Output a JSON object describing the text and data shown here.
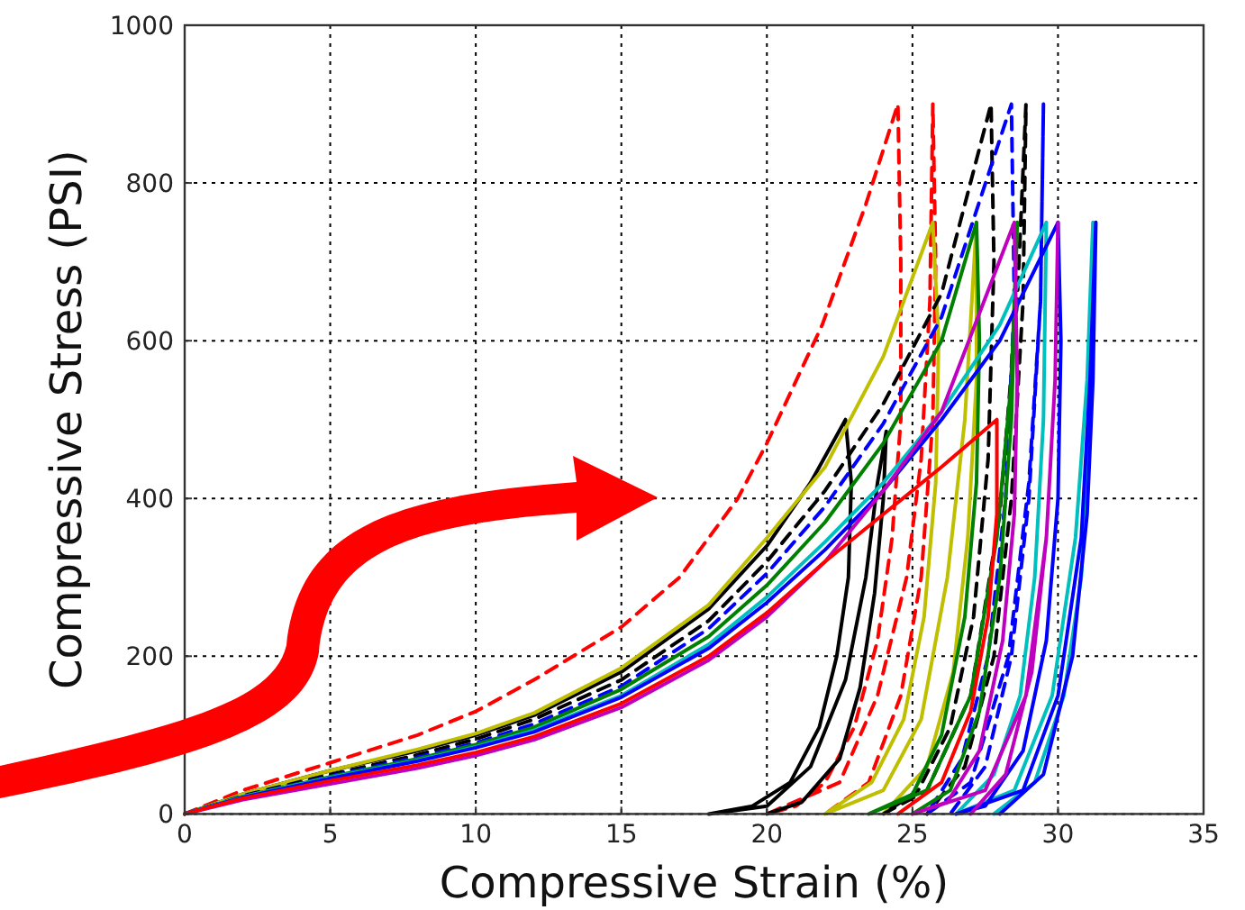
{
  "chart_data": {
    "type": "line",
    "xlabel": "Compressive Strain (%)",
    "ylabel": "Compressive Stress (PSI)",
    "xlim": [
      0,
      35
    ],
    "ylim": [
      0,
      1000
    ],
    "xticks": [
      0,
      5,
      10,
      15,
      20,
      25,
      30,
      35
    ],
    "yticks": [
      0,
      200,
      400,
      600,
      800,
      1000
    ],
    "grid": true,
    "marker": "none",
    "series": [
      {
        "color": "#ff0000",
        "line_style": "dashed",
        "x": [
          0,
          2,
          5,
          8,
          10,
          12,
          15,
          17,
          19,
          20,
          21.9,
          23.4,
          24.5,
          24.6,
          24.6,
          24.3,
          23.8,
          23,
          22,
          21,
          20,
          22.5,
          23.8,
          24.8,
          25.3,
          25.6,
          25.7,
          25.8,
          25.7,
          25.3,
          24.6,
          23.5,
          22
        ],
        "values": [
          0,
          30,
          65,
          100,
          130,
          170,
          237,
          300,
          400,
          470,
          620,
          773,
          900,
          700,
          500,
          350,
          220,
          110,
          40,
          10,
          0,
          40,
          150,
          300,
          450,
          650,
          900,
          700,
          500,
          300,
          150,
          40,
          0
        ]
      },
      {
        "color": "#000000",
        "line_style": "solid",
        "x": [
          0,
          2,
          5,
          8,
          10,
          12,
          15,
          18,
          20,
          21.5,
          22.7,
          22.9,
          22.8,
          22.4,
          21.8,
          20.8,
          19.5,
          18,
          20,
          21.5,
          22.7,
          23.4,
          23.8,
          24.1,
          24,
          23.7,
          23.2,
          22.5,
          21.2,
          20
        ],
        "values": [
          0,
          25,
          55,
          80,
          100,
          125,
          180,
          260,
          340,
          420,
          500,
          420,
          300,
          200,
          110,
          40,
          10,
          0,
          10,
          60,
          170,
          300,
          420,
          485,
          400,
          280,
          160,
          70,
          15,
          0
        ]
      },
      {
        "color": "#bfbf00",
        "line_style": "solid",
        "x": [
          0,
          2,
          5,
          8,
          10,
          12,
          15,
          18,
          20,
          22,
          24,
          25.7,
          25.9,
          25.8,
          25.4,
          24.7,
          23.6,
          22,
          24,
          25.3,
          26.2,
          26.8,
          27.2,
          27.2,
          26.9,
          26.4,
          25.5,
          24
        ],
        "values": [
          0,
          25,
          55,
          82,
          102,
          128,
          185,
          265,
          350,
          440,
          580,
          750,
          600,
          420,
          250,
          120,
          40,
          0,
          30,
          120,
          300,
          500,
          750,
          550,
          350,
          180,
          60,
          0
        ]
      },
      {
        "color": "#000000",
        "line_style": "dashed",
        "x": [
          0,
          2,
          5,
          8,
          10,
          12,
          15,
          18,
          20,
          22,
          24,
          26,
          27.7,
          27.8,
          27.6,
          27.1,
          26.3,
          25.2,
          24,
          25.5,
          27,
          28,
          28.6,
          28.9,
          28.8,
          28.4,
          27.8,
          26.8,
          25.5
        ],
        "values": [
          0,
          23,
          50,
          75,
          95,
          120,
          170,
          245,
          320,
          410,
          520,
          660,
          900,
          700,
          450,
          250,
          110,
          30,
          0,
          30,
          150,
          380,
          650,
          900,
          650,
          400,
          200,
          60,
          0
        ]
      },
      {
        "color": "#0000ff",
        "line_style": "dashed",
        "x": [
          0,
          2,
          5,
          8,
          10,
          12,
          15,
          18,
          20,
          22,
          24,
          26,
          28.4,
          28.5,
          28.2,
          27.6,
          26.7,
          25.5,
          27,
          28.3,
          29,
          29.4,
          29.5,
          29.4,
          29,
          28.4,
          27.5,
          26.3
        ],
        "values": [
          0,
          22,
          48,
          72,
          90,
          114,
          162,
          235,
          305,
          390,
          495,
          630,
          900,
          650,
          400,
          200,
          70,
          0,
          40,
          200,
          420,
          650,
          900,
          650,
          400,
          200,
          60,
          0
        ]
      },
      {
        "color": "#008000",
        "line_style": "solid",
        "x": [
          0,
          2,
          5,
          8,
          10,
          12,
          15,
          18,
          20,
          22,
          24,
          26,
          27.2,
          27.3,
          27.2,
          26.8,
          26,
          25,
          23.5,
          25.5,
          27,
          27.9,
          28.4,
          28.6,
          28.4,
          28,
          27.3,
          26.3,
          25
        ],
        "values": [
          0,
          22,
          47,
          70,
          88,
          110,
          158,
          225,
          290,
          370,
          470,
          600,
          750,
          600,
          420,
          250,
          100,
          25,
          0,
          30,
          150,
          350,
          550,
          750,
          500,
          300,
          130,
          30,
          0
        ]
      },
      {
        "color": "#00bfbf",
        "line_style": "solid",
        "x": [
          0,
          2,
          5,
          8,
          10,
          12,
          15,
          18,
          20,
          22,
          24,
          26,
          28,
          29.6,
          29.5,
          29.2,
          28.7,
          27.8,
          26.5,
          28.5,
          29.8,
          30.6,
          31,
          31.2,
          31.1,
          30.8,
          30.2,
          29.2,
          27.8
        ],
        "values": [
          0,
          22,
          46,
          68,
          85,
          106,
          150,
          215,
          275,
          345,
          420,
          510,
          620,
          750,
          500,
          300,
          150,
          50,
          0,
          30,
          150,
          350,
          550,
          750,
          500,
          300,
          150,
          40,
          0
        ]
      },
      {
        "color": "#0000ff",
        "line_style": "solid",
        "x": [
          0,
          2,
          5,
          8,
          10,
          12,
          15,
          18,
          20,
          22,
          24,
          26,
          28,
          30,
          30.1,
          30,
          29.6,
          28.8,
          27.5,
          26.5,
          28.8,
          30,
          30.8,
          31.1,
          31.3,
          31.2,
          31,
          30.5,
          29.5,
          28
        ],
        "values": [
          0,
          21,
          45,
          67,
          84,
          104,
          148,
          210,
          268,
          335,
          410,
          500,
          600,
          750,
          600,
          400,
          220,
          80,
          10,
          0,
          30,
          150,
          350,
          550,
          750,
          550,
          380,
          200,
          50,
          0
        ]
      },
      {
        "color": "#bf00bf",
        "line_style": "solid",
        "x": [
          0,
          2,
          5,
          8,
          10,
          12,
          15,
          18,
          20,
          22,
          24,
          26,
          28.5,
          28.6,
          28.5,
          28.1,
          27.3,
          26.2,
          25,
          27.5,
          28.9,
          29.6,
          29.9,
          30,
          29.9,
          29.6,
          29.1,
          28.2,
          27
        ],
        "values": [
          0,
          18,
          38,
          58,
          74,
          94,
          135,
          195,
          250,
          320,
          410,
          510,
          750,
          550,
          380,
          220,
          80,
          15,
          0,
          30,
          150,
          350,
          550,
          750,
          550,
          350,
          180,
          50,
          0
        ]
      },
      {
        "color": "#ff0000",
        "line_style": "solid",
        "x": [
          0,
          2,
          5,
          8,
          10,
          12,
          15,
          18,
          20,
          22,
          24,
          26,
          27.9,
          27.9,
          27.6,
          27,
          26,
          24.5
        ],
        "values": [
          0,
          20,
          42,
          62,
          78,
          98,
          140,
          200,
          255,
          320,
          380,
          440,
          500,
          380,
          250,
          130,
          40,
          0
        ]
      }
    ]
  }
}
